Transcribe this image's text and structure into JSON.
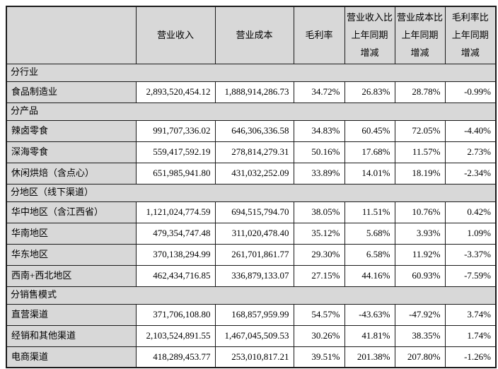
{
  "colors": {
    "cell_shading": "#d8d8d8",
    "border": "#1a1a1a",
    "data_background": "#ffffff",
    "text": "#000000"
  },
  "table": {
    "header": {
      "c1": "",
      "c2": "营业收入",
      "c3": "营业成本",
      "c4": "毛利率",
      "c5": "营业收入比\n上年同期\n增减",
      "c6": "营业成本比\n上年同期\n增减",
      "c7": "毛利率比\n上年同期\n增减"
    },
    "rows": [
      {
        "type": "section",
        "label": "分行业"
      },
      {
        "type": "data",
        "label": "食品制造业",
        "revenue": "2,893,520,454.12",
        "cost": "1,888,914,286.73",
        "margin": "34.72%",
        "revenue_yoy": "26.83%",
        "cost_yoy": "28.78%",
        "margin_yoy": "-0.99%"
      },
      {
        "type": "section",
        "label": "分产品"
      },
      {
        "type": "data",
        "label": "辣卤零食",
        "revenue": "991,707,336.02",
        "cost": "646,306,336.58",
        "margin": "34.83%",
        "revenue_yoy": "60.45%",
        "cost_yoy": "72.05%",
        "margin_yoy": "-4.40%"
      },
      {
        "type": "data",
        "label": "深海零食",
        "revenue": "559,417,592.19",
        "cost": "278,814,279.31",
        "margin": "50.16%",
        "revenue_yoy": "17.68%",
        "cost_yoy": "11.57%",
        "margin_yoy": "2.73%"
      },
      {
        "type": "data",
        "label": "休闲烘焙（含点心）",
        "revenue": "651,985,941.80",
        "cost": "431,032,252.09",
        "margin": "33.89%",
        "revenue_yoy": "14.01%",
        "cost_yoy": "18.19%",
        "margin_yoy": "-2.34%"
      },
      {
        "type": "section",
        "label": "分地区（线下渠道）"
      },
      {
        "type": "data",
        "label": "华中地区（含江西省）",
        "revenue": "1,121,024,774.59",
        "cost": "694,515,794.70",
        "margin": "38.05%",
        "revenue_yoy": "11.51%",
        "cost_yoy": "10.76%",
        "margin_yoy": "0.42%"
      },
      {
        "type": "data",
        "label": "华南地区",
        "revenue": "479,354,747.48",
        "cost": "311,020,478.40",
        "margin": "35.12%",
        "revenue_yoy": "5.68%",
        "cost_yoy": "3.93%",
        "margin_yoy": "1.09%"
      },
      {
        "type": "data",
        "label": "华东地区",
        "revenue": "370,138,294.99",
        "cost": "261,701,861.77",
        "margin": "29.30%",
        "revenue_yoy": "6.58%",
        "cost_yoy": "11.92%",
        "margin_yoy": "-3.37%"
      },
      {
        "type": "data",
        "label": "西南+西北地区",
        "revenue": "462,434,716.85",
        "cost": "336,879,133.07",
        "margin": "27.15%",
        "revenue_yoy": "44.16%",
        "cost_yoy": "60.93%",
        "margin_yoy": "-7.59%"
      },
      {
        "type": "section",
        "label": "分销售模式"
      },
      {
        "type": "data",
        "label": "直营渠道",
        "revenue": "371,706,108.80",
        "cost": "168,857,959.99",
        "margin": "54.57%",
        "revenue_yoy": "-43.63%",
        "cost_yoy": "-47.92%",
        "margin_yoy": "3.74%"
      },
      {
        "type": "data",
        "label": "经销和其他渠道",
        "revenue": "2,103,524,891.55",
        "cost": "1,467,045,509.53",
        "margin": "30.26%",
        "revenue_yoy": "41.81%",
        "cost_yoy": "38.35%",
        "margin_yoy": "1.74%"
      },
      {
        "type": "data",
        "label": "电商渠道",
        "revenue": "418,289,453.77",
        "cost": "253,010,817.21",
        "margin": "39.51%",
        "revenue_yoy": "201.38%",
        "cost_yoy": "207.80%",
        "margin_yoy": "-1.26%"
      }
    ]
  }
}
